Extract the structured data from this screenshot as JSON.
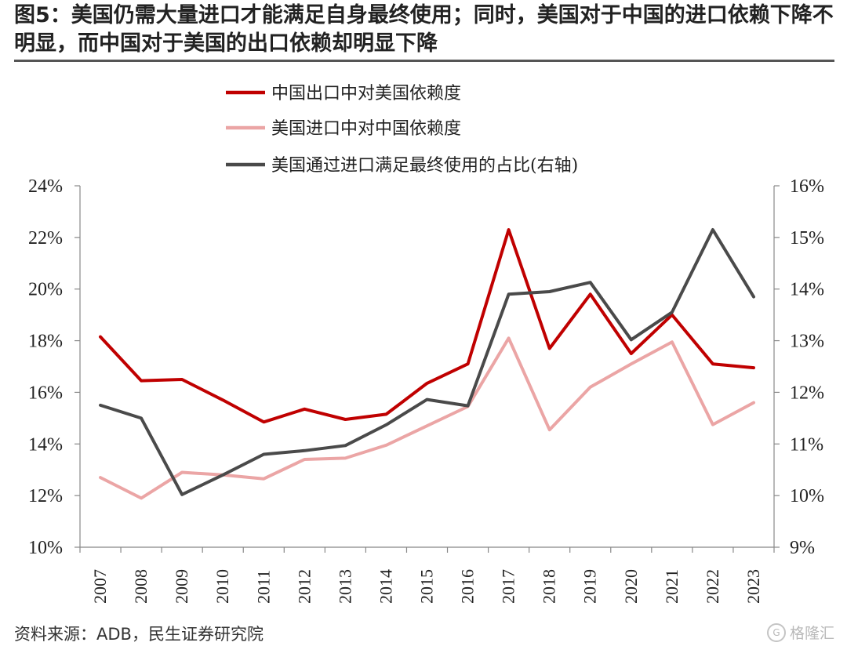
{
  "title": "图5：美国仍需大量进口才能满足自身最终使用；同时，美国对于中国的进口依赖下降不明显，而中国对于美国的出口依赖却明显下降",
  "footer": "资料来源：ADB，民生证券研究院",
  "watermark": "格隆汇",
  "chart_data": {
    "type": "line",
    "categories": [
      "2007",
      "2008",
      "2009",
      "2010",
      "2011",
      "2012",
      "2013",
      "2014",
      "2015",
      "2016",
      "2017",
      "2018",
      "2019",
      "2020",
      "2021",
      "2022",
      "2023"
    ],
    "y_left": {
      "min": 10,
      "max": 24,
      "step": 2,
      "tick_labels": [
        "10%",
        "12%",
        "14%",
        "16%",
        "18%",
        "20%",
        "22%",
        "24%"
      ]
    },
    "y_right": {
      "min": 9,
      "max": 16,
      "step": 1,
      "tick_labels": [
        "9%",
        "10%",
        "11%",
        "12%",
        "13%",
        "14%",
        "15%",
        "16%"
      ]
    },
    "legend_position": "top",
    "grid": false,
    "series": [
      {
        "name": "中国出口中对美国依赖度",
        "axis": "left",
        "color": "#c00000",
        "values": [
          18.15,
          16.45,
          16.5,
          15.7,
          14.85,
          15.35,
          14.95,
          15.15,
          16.35,
          17.1,
          22.3,
          17.7,
          19.8,
          17.5,
          19.0,
          17.1,
          16.95
        ]
      },
      {
        "name": "美国进口中对中国依赖度",
        "axis": "left",
        "color": "#eba5a5",
        "values": [
          12.7,
          11.9,
          12.9,
          12.8,
          12.65,
          13.4,
          13.45,
          13.95,
          14.7,
          15.45,
          18.1,
          14.55,
          16.2,
          17.1,
          17.95,
          14.75,
          15.6
        ]
      },
      {
        "name": "美国通过进口满足最终使用的占比(右轴)",
        "axis": "right",
        "color": "#4a4a4a",
        "values": [
          11.75,
          11.5,
          10.02,
          10.4,
          10.8,
          10.87,
          10.97,
          11.37,
          11.86,
          11.74,
          13.9,
          13.95,
          14.13,
          13.02,
          13.55,
          15.15,
          13.85
        ]
      }
    ]
  }
}
